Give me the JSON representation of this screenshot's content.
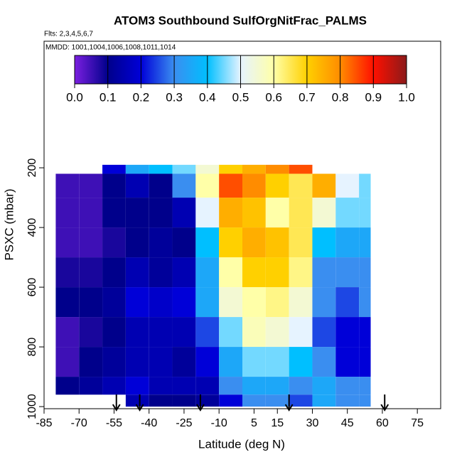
{
  "chart_data": {
    "type": "heatmap",
    "title": "ATOM3 Southbound SulfOrgNitFrac_PALMS",
    "subtitle": "Flts: 2,3,4,5,6,7",
    "annotation": "MMDD: 1001,1004,1006,1008,1011,1014",
    "xlabel": "Latitude (deg N)",
    "ylabel": "PSXC (mbar)",
    "xlim": [
      -85,
      85
    ],
    "xticks": [
      -85,
      -70,
      -55,
      -40,
      -25,
      -10,
      5,
      15,
      30,
      45,
      60,
      75
    ],
    "ylim": [
      1007,
      -224
    ],
    "yticks": [
      200,
      400,
      600,
      800,
      1000
    ],
    "x_edges": [
      -80,
      -70,
      -60,
      -50,
      -40,
      -30,
      -20,
      -10,
      0,
      10,
      20,
      30,
      40,
      50,
      55
    ],
    "y_edges": [
      190,
      220,
      300,
      400,
      500,
      600,
      700,
      800,
      900,
      960,
      1000
    ],
    "values": [
      [
        null,
        null,
        0.2,
        0.35,
        0.4,
        0.45,
        0.55,
        0.7,
        0.75,
        0.8,
        0.85,
        null,
        null,
        null
      ],
      [
        0.05,
        0.05,
        0.1,
        0.15,
        0.1,
        0.3,
        0.6,
        0.85,
        0.8,
        0.7,
        0.65,
        0.75,
        0.5,
        0.45
      ],
      [
        0.05,
        0.05,
        0.1,
        0.1,
        0.1,
        0.15,
        0.5,
        0.75,
        0.72,
        0.6,
        0.65,
        0.55,
        0.45,
        0.45
      ],
      [
        0.05,
        0.05,
        0.08,
        0.1,
        0.12,
        0.1,
        0.4,
        0.7,
        0.75,
        0.72,
        0.65,
        0.4,
        0.35,
        0.35
      ],
      [
        0.08,
        0.08,
        0.1,
        0.15,
        0.12,
        0.15,
        0.35,
        0.6,
        0.7,
        0.7,
        0.62,
        0.3,
        0.3,
        0.3
      ],
      [
        0.1,
        0.1,
        0.12,
        0.2,
        0.18,
        0.2,
        0.35,
        0.55,
        0.6,
        0.62,
        0.55,
        0.3,
        0.25,
        0.3
      ],
      [
        0.05,
        0.08,
        0.1,
        0.15,
        0.15,
        0.15,
        0.25,
        0.45,
        0.58,
        0.55,
        0.5,
        0.25,
        0.2,
        0.2
      ],
      [
        0.05,
        0.1,
        0.12,
        0.15,
        0.15,
        0.12,
        0.2,
        0.35,
        0.45,
        0.45,
        0.4,
        0.3,
        0.2,
        0.2
      ],
      [
        0.1,
        0.12,
        0.15,
        0.2,
        0.15,
        0.15,
        0.15,
        0.3,
        0.35,
        0.35,
        0.3,
        0.35,
        0.3,
        0.3
      ],
      [
        null,
        null,
        null,
        0.15,
        0.1,
        0.1,
        0.12,
        0.2,
        0.3,
        0.3,
        0.25,
        0.35,
        0.3,
        0.3
      ]
    ],
    "colorbar_ticks": [
      0.0,
      0.1,
      0.2,
      0.3,
      0.4,
      0.5,
      0.6,
      0.7,
      0.8,
      0.9,
      1.0
    ],
    "colorbar_labels": [
      "0.0",
      "0.1",
      "0.2",
      "0.3",
      "0.4",
      "0.5",
      "0.6",
      "0.7",
      "0.8",
      "0.9",
      "1.0"
    ],
    "colors": [
      "#7b1fe0",
      "#00008b",
      "#0000d8",
      "#3a8ef0",
      "#00bfff",
      "#e6f3ff",
      "#ffffa8",
      "#ffd000",
      "#ff8c00",
      "#ff1000",
      "#8b1a1a"
    ],
    "arrows": [
      -54,
      -44,
      -18,
      20,
      61
    ]
  }
}
